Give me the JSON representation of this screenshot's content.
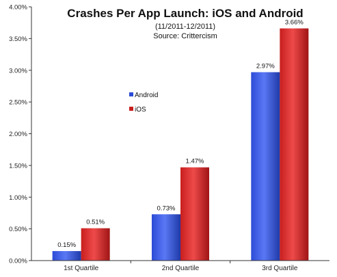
{
  "chart_data": {
    "type": "bar",
    "title": "Crashes Per App Launch: iOS and Android",
    "subtitle_lines": [
      "(11/2011-12/2011)",
      "Source: Crittercism"
    ],
    "categories": [
      "1st Quartile",
      "2nd Quartile",
      "3rd Quartile"
    ],
    "series": [
      {
        "name": "Android",
        "values": [
          0.15,
          0.73,
          2.97
        ],
        "labels": [
          "0.15%",
          "0.73%",
          "2.97%"
        ],
        "color": "#2c4bd6",
        "color_light": "#6f8bff"
      },
      {
        "name": "iOS",
        "values": [
          0.51,
          1.47,
          3.66
        ],
        "labels": [
          "0.51%",
          "1.47%",
          "3.66%"
        ],
        "color": "#c81e1e",
        "color_light": "#f06060"
      }
    ],
    "ylim": [
      0,
      4
    ],
    "yticks": [
      0,
      0.5,
      1,
      1.5,
      2,
      2.5,
      3,
      3.5,
      4
    ],
    "ytick_labels": [
      "0.00%",
      "0.50%",
      "1.00%",
      "1.50%",
      "2.00%",
      "2.50%",
      "3.00%",
      "3.50%",
      "4.00%"
    ],
    "xlabel": "",
    "ylabel": "",
    "grid": false,
    "legend_position": "center-left"
  }
}
